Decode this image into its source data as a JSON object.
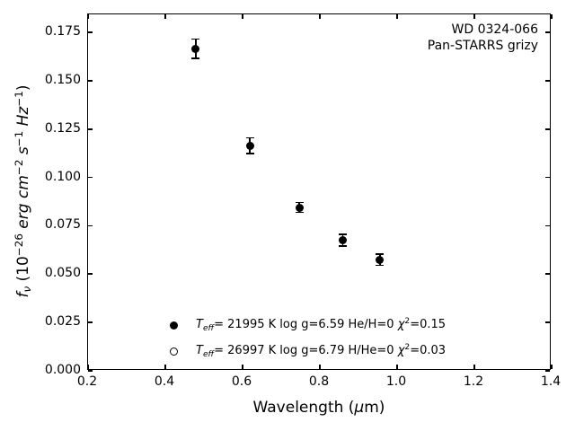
{
  "annotation": {
    "line1": "WD 0324-066",
    "line2": "Pan-STARRS grizy"
  },
  "chart_data": {
    "type": "scatter",
    "title": "",
    "xlabel": "Wavelength (μm)",
    "ylabel": "fν (10⁻²⁶ erg cm⁻² s⁻¹ Hz⁻¹)",
    "xlim": [
      0.2,
      1.4
    ],
    "ylim": [
      0.0,
      0.1843
    ],
    "grid": false,
    "tick_style": "inward-all-sides",
    "axis_color": "#000000",
    "background_color": "#ffffff",
    "xtick_values": [
      0.2,
      0.4,
      0.6,
      0.8,
      1.0,
      1.2,
      1.4
    ],
    "xtick_labels": [
      "0.2",
      "0.4",
      "0.6",
      "0.8",
      "1.0",
      "1.2",
      "1.4"
    ],
    "ytick_values": [
      0.0,
      0.025,
      0.05,
      0.075,
      0.1,
      0.125,
      0.15,
      0.175
    ],
    "ytick_labels": [
      "0.000",
      "0.025",
      "0.050",
      "0.075",
      "0.100",
      "0.125",
      "0.150",
      "0.175"
    ],
    "xlabel_parts": [
      {
        "t": "Wavelength ("
      },
      {
        "t": "μ",
        "i": true
      },
      {
        "t": "m)"
      }
    ],
    "ylabel_parts": [
      {
        "t": "f",
        "i": true
      },
      {
        "t": "ν",
        "sub": true,
        "i": true
      },
      {
        "t": " (10"
      },
      {
        "t": "−26",
        "sup": true
      },
      {
        "t": " "
      },
      {
        "t": "erg",
        "i": true
      },
      {
        "t": " "
      },
      {
        "t": "cm",
        "i": true
      },
      {
        "t": "−2",
        "sup": true
      },
      {
        "t": " "
      },
      {
        "t": "s",
        "i": true
      },
      {
        "t": "−1",
        "sup": true
      },
      {
        "t": " "
      },
      {
        "t": "Hz",
        "i": true
      },
      {
        "t": "−1",
        "sup": true
      },
      {
        "t": ")"
      }
    ],
    "series": [
      {
        "name": "Pan-STARRS grizy photometry",
        "marker": "filled-circle",
        "color": "#000000",
        "x": [
          0.481,
          0.621,
          0.749,
          0.862,
          0.958
        ],
        "y": [
          0.166,
          0.116,
          0.084,
          0.067,
          0.057
        ],
        "yerr": [
          0.005,
          0.004,
          0.0025,
          0.003,
          0.003
        ]
      }
    ],
    "annotation_lines": [
      "WD 0324-066",
      "Pan-STARRS grizy"
    ],
    "legend": {
      "position": "lower-center-inside",
      "entries": [
        {
          "marker": "filled-circle",
          "label": "Teff= 21995 K  log g=6.59  He/H=0  χ²=0.15",
          "label_parts": [
            {
              "t": "T",
              "i": true
            },
            {
              "t": "eff",
              "sub": true,
              "i": true
            },
            {
              "t": "= 21995 K  log g=6.59  He/H=0  "
            },
            {
              "t": "χ",
              "i": true
            },
            {
              "t": "2",
              "sup": true
            },
            {
              "t": "=0.15"
            }
          ]
        },
        {
          "marker": "open-circle",
          "label": "Teff= 26997 K  log g=6.79  H/He=0  χ²=0.03",
          "label_parts": [
            {
              "t": "T",
              "i": true
            },
            {
              "t": "eff",
              "sub": true,
              "i": true
            },
            {
              "t": "= 26997 K  log g=6.79  H/He=0  "
            },
            {
              "t": "χ",
              "i": true
            },
            {
              "t": "2",
              "sup": true
            },
            {
              "t": "=0.03"
            }
          ]
        }
      ]
    }
  }
}
